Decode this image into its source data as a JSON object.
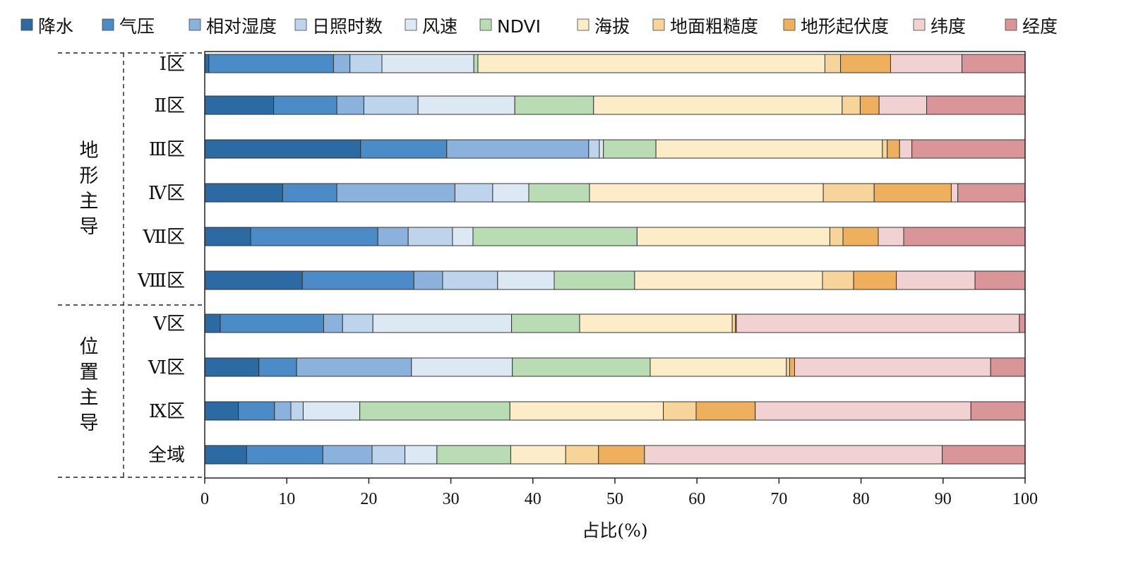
{
  "chart_data": {
    "type": "bar",
    "orientation": "horizontal",
    "stacked": true,
    "xlabel": "占比(%)",
    "xlim": [
      0,
      100
    ],
    "xticks": [
      "0",
      "10",
      "20",
      "30",
      "40",
      "50",
      "60",
      "70",
      "80",
      "90",
      "100"
    ],
    "legend_position": "top",
    "categories": [
      "Ⅰ区",
      "Ⅱ区",
      "Ⅲ区",
      "Ⅳ区",
      "Ⅶ区",
      "Ⅷ区",
      "Ⅴ区",
      "Ⅵ区",
      "Ⅸ区",
      "全域"
    ],
    "groups": [
      {
        "label": "地形主导",
        "categories": [
          "Ⅰ区",
          "Ⅱ区",
          "Ⅲ区",
          "Ⅳ区",
          "Ⅶ区",
          "Ⅷ区"
        ]
      },
      {
        "label": "位置主导",
        "categories": [
          "Ⅴ区",
          "Ⅵ区",
          "Ⅸ区",
          "全域"
        ]
      }
    ],
    "series": [
      {
        "name": "降水",
        "color": "#2b6aa3",
        "values": [
          0.5,
          8.4,
          19.0,
          9.5,
          5.6,
          11.9,
          1.9,
          6.6,
          4.1,
          5.1
        ]
      },
      {
        "name": "气压",
        "color": "#4a8bc8",
        "values": [
          15.2,
          7.7,
          10.5,
          6.6,
          15.5,
          13.6,
          12.6,
          4.6,
          4.4,
          9.3
        ]
      },
      {
        "name": "相对湿度",
        "color": "#8bb2dc",
        "values": [
          2.0,
          3.3,
          17.3,
          14.4,
          3.7,
          3.5,
          2.3,
          14.0,
          2.0,
          6.0
        ]
      },
      {
        "name": "日照时数",
        "color": "#bed4ec",
        "values": [
          3.9,
          6.6,
          1.3,
          4.6,
          5.4,
          6.7,
          3.7,
          0.0,
          1.5,
          4.0
        ]
      },
      {
        "name": "风速",
        "color": "#dde8f5",
        "values": [
          11.2,
          11.8,
          0.5,
          4.4,
          2.5,
          6.9,
          16.9,
          12.3,
          6.9,
          3.9
        ]
      },
      {
        "name": "NDVI",
        "color": "#b9dcb4",
        "values": [
          0.5,
          9.6,
          6.4,
          7.4,
          20.0,
          9.8,
          8.3,
          16.8,
          18.3,
          9.0
        ]
      },
      {
        "name": "海拔",
        "color": "#fcecc8",
        "values": [
          42.3,
          30.3,
          27.6,
          28.5,
          23.5,
          22.9,
          18.6,
          16.6,
          18.7,
          6.7
        ]
      },
      {
        "name": "地面粗糙度",
        "color": "#f7d49a",
        "values": [
          1.9,
          2.2,
          0.6,
          6.2,
          1.6,
          3.8,
          0.4,
          0.4,
          4.0,
          4.0
        ]
      },
      {
        "name": "地形起伏度",
        "color": "#efb05e",
        "values": [
          6.1,
          2.3,
          1.5,
          9.4,
          4.3,
          5.2,
          0.1,
          0.6,
          7.2,
          5.6
        ]
      },
      {
        "name": "纬度",
        "color": "#f2d1d2",
        "values": [
          8.7,
          5.8,
          1.5,
          0.8,
          3.1,
          9.6,
          34.5,
          23.9,
          26.3,
          36.3
        ]
      },
      {
        "name": "经度",
        "color": "#d99597",
        "values": [
          7.7,
          12.0,
          13.8,
          8.2,
          14.8,
          6.1,
          0.7,
          4.2,
          6.6,
          10.1
        ]
      }
    ]
  }
}
